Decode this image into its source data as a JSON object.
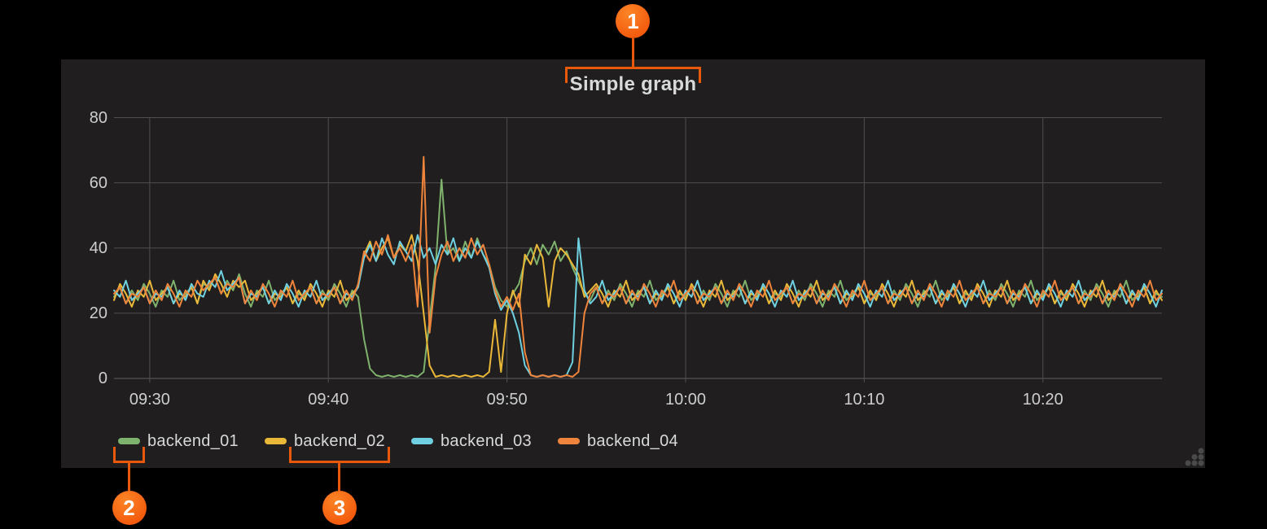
{
  "panel": {
    "title": "Simple graph"
  },
  "colors": {
    "page_background": "#000000",
    "panel_background": "#201e1e",
    "grid_line": "#4f4f4f",
    "axis_line": "#5f5f5f",
    "text": "#d8d9da",
    "tick_text": "#cdced0",
    "callout_accent": "#e8590c",
    "resize_dots": "#4a4a4a"
  },
  "callouts": [
    {
      "number": "1"
    },
    {
      "number": "2"
    },
    {
      "number": "3"
    }
  ],
  "chart_data": {
    "type": "line",
    "title": "Simple graph",
    "x_start": "09:28:00",
    "x_end": "10:26:40",
    "x_step_seconds": 20,
    "x_ticks": [
      "09:30",
      "09:40",
      "09:50",
      "10:00",
      "10:10",
      "10:20"
    ],
    "y_ticks": [
      80,
      60,
      40,
      20,
      0
    ],
    "ylim": [
      0,
      80
    ],
    "grid": true,
    "legend_position": "bottom",
    "series": [
      {
        "name": "backend_01",
        "color": "#7EB26D",
        "values": [
          25,
          28,
          23,
          27,
          24,
          29,
          26,
          22,
          27,
          25,
          30,
          24,
          26,
          28,
          23,
          29,
          28,
          31,
          26,
          30,
          27,
          32,
          26,
          22,
          27,
          25,
          30,
          24,
          26,
          28,
          23,
          26,
          25,
          28,
          23,
          27,
          24,
          29,
          26,
          22,
          27,
          25,
          12,
          3,
          1,
          0.5,
          1,
          0.5,
          1,
          0.5,
          1,
          0.5,
          2,
          18,
          34,
          61,
          38,
          40,
          36,
          42,
          37,
          43,
          38,
          35,
          28,
          24,
          22,
          26,
          29,
          36,
          40,
          35,
          41,
          38,
          42,
          36,
          39,
          34,
          30,
          26,
          24,
          28,
          23,
          27,
          24,
          29,
          26,
          22,
          27,
          25,
          30,
          24,
          26,
          28,
          23,
          26,
          25,
          28,
          23,
          27,
          24,
          29,
          26,
          22,
          27,
          25,
          30,
          24,
          26,
          28,
          23,
          26,
          25,
          28,
          23,
          27,
          24,
          29,
          26,
          22,
          27,
          25,
          30,
          24,
          26,
          28,
          23,
          26,
          25,
          28,
          23,
          27,
          24,
          29,
          26,
          22,
          27,
          25,
          30,
          24,
          26,
          28,
          23,
          26,
          25,
          28,
          23,
          27,
          24,
          29,
          26,
          22,
          27,
          25,
          30,
          24,
          26,
          28,
          23,
          26,
          25,
          28,
          23,
          27,
          24,
          29,
          26,
          22,
          27,
          25,
          30,
          24,
          26,
          28,
          23,
          26,
          25
        ]
      },
      {
        "name": "backend_02",
        "color": "#EAB839",
        "values": [
          24,
          29,
          26,
          22,
          27,
          25,
          30,
          24,
          26,
          28,
          23,
          26,
          25,
          28,
          23,
          30,
          27,
          32,
          29,
          25,
          30,
          28,
          30,
          24,
          26,
          28,
          23,
          26,
          25,
          28,
          23,
          27,
          24,
          29,
          26,
          22,
          27,
          25,
          30,
          24,
          26,
          28,
          38,
          42,
          36,
          40,
          43,
          37,
          41,
          39,
          44,
          36,
          20,
          4,
          0.5,
          1,
          0.5,
          1,
          0.5,
          1,
          0.5,
          1,
          0.5,
          2,
          18,
          2,
          20,
          27,
          22,
          38,
          35,
          41,
          37,
          22,
          36,
          40,
          38,
          35,
          32,
          25,
          27,
          29,
          26,
          22,
          27,
          25,
          30,
          24,
          26,
          28,
          23,
          26,
          25,
          28,
          23,
          27,
          24,
          29,
          26,
          22,
          27,
          25,
          30,
          24,
          26,
          28,
          23,
          26,
          25,
          28,
          23,
          27,
          24,
          29,
          26,
          22,
          27,
          25,
          30,
          24,
          26,
          28,
          23,
          26,
          25,
          28,
          23,
          27,
          24,
          29,
          26,
          22,
          27,
          25,
          30,
          24,
          26,
          28,
          23,
          26,
          25,
          28,
          23,
          27,
          24,
          29,
          26,
          22,
          27,
          25,
          30,
          24,
          26,
          28,
          23,
          26,
          25,
          28,
          23,
          27,
          24,
          29,
          26,
          22,
          27,
          25,
          30,
          24,
          26,
          28,
          23,
          26,
          25,
          28,
          23,
          27,
          24
        ]
      },
      {
        "name": "backend_03",
        "color": "#6ED0E0",
        "values": [
          27,
          25,
          30,
          24,
          26,
          28,
          23,
          26,
          25,
          28,
          23,
          27,
          24,
          29,
          26,
          25,
          30,
          28,
          33,
          27,
          29,
          31,
          23,
          26,
          25,
          28,
          23,
          27,
          24,
          29,
          26,
          22,
          27,
          25,
          30,
          24,
          26,
          28,
          23,
          26,
          25,
          28,
          37,
          41,
          36,
          43,
          38,
          35,
          42,
          39,
          36,
          44,
          37,
          40,
          35,
          41,
          38,
          43,
          36,
          40,
          37,
          42,
          38,
          34,
          26,
          21,
          24,
          20,
          14,
          4,
          1,
          0.5,
          1,
          0.5,
          1,
          0.5,
          1,
          5,
          43,
          27,
          23,
          25,
          30,
          24,
          26,
          28,
          23,
          26,
          25,
          28,
          23,
          27,
          24,
          29,
          26,
          22,
          27,
          25,
          30,
          24,
          26,
          28,
          23,
          26,
          25,
          28,
          23,
          27,
          24,
          29,
          26,
          22,
          27,
          25,
          30,
          24,
          26,
          28,
          23,
          26,
          25,
          28,
          23,
          27,
          24,
          29,
          26,
          22,
          27,
          25,
          30,
          24,
          26,
          28,
          23,
          26,
          25,
          28,
          23,
          27,
          24,
          29,
          26,
          22,
          27,
          25,
          30,
          24,
          26,
          28,
          23,
          26,
          25,
          28,
          23,
          27,
          24,
          29,
          26,
          22,
          27,
          25,
          30,
          24,
          26,
          28,
          23,
          26,
          25,
          28,
          23,
          27,
          24,
          29,
          26,
          22,
          27
        ]
      },
      {
        "name": "backend_04",
        "color": "#EF843C",
        "values": [
          26,
          28,
          23,
          26,
          25,
          28,
          23,
          27,
          24,
          29,
          26,
          22,
          27,
          25,
          30,
          27,
          29,
          31,
          26,
          29,
          28,
          31,
          23,
          27,
          24,
          29,
          26,
          22,
          27,
          25,
          30,
          24,
          26,
          28,
          23,
          26,
          25,
          28,
          23,
          27,
          24,
          29,
          39,
          36,
          42,
          38,
          44,
          37,
          40,
          36,
          41,
          22,
          68,
          14,
          31,
          38,
          42,
          36,
          40,
          37,
          43,
          38,
          41,
          35,
          27,
          22,
          25,
          21,
          26,
          8,
          1,
          0.5,
          1,
          0.5,
          1,
          0.5,
          1,
          0.5,
          2,
          20,
          26,
          28,
          23,
          26,
          25,
          28,
          23,
          27,
          24,
          29,
          26,
          22,
          27,
          25,
          30,
          24,
          26,
          28,
          23,
          26,
          25,
          28,
          23,
          27,
          24,
          29,
          26,
          22,
          27,
          25,
          30,
          24,
          26,
          28,
          23,
          26,
          25,
          28,
          23,
          27,
          24,
          29,
          26,
          22,
          27,
          25,
          30,
          24,
          26,
          28,
          23,
          26,
          25,
          28,
          23,
          27,
          24,
          29,
          26,
          22,
          27,
          25,
          30,
          24,
          26,
          28,
          23,
          26,
          25,
          28,
          23,
          27,
          24,
          29,
          26,
          22,
          27,
          25,
          30,
          24,
          26,
          28,
          23,
          26,
          25,
          28,
          23,
          27,
          24,
          29,
          26,
          22,
          27,
          25,
          30,
          24,
          26
        ]
      }
    ]
  }
}
